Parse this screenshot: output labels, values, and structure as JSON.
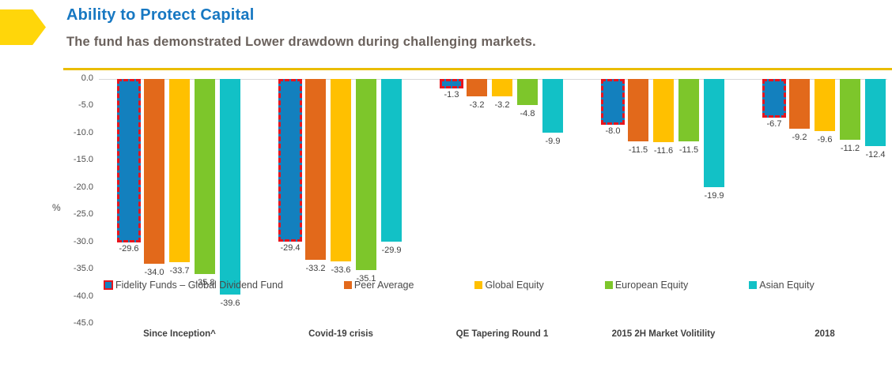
{
  "header": {
    "title": "Ability to Protect Capital",
    "subtitle": "The fund has demonstrated Lower drawdown during challenging markets."
  },
  "colors": {
    "title_blue": "#1778C2",
    "subtitle_gray": "#6A615C",
    "accent_yellow": "#EABD00",
    "arrow_yellow": "#FFD60A",
    "highlight_border_red": "#E8141C",
    "axis_line_gray": "#D9D9D9"
  },
  "chart_data": {
    "type": "bar",
    "title": "",
    "xlabel": "",
    "ylabel": "%",
    "ylim": [
      -45,
      0
    ],
    "ytick_labels": [
      "0.0",
      "-5.0",
      "-10.0",
      "-15.0",
      "-20.0",
      "-25.0",
      "-30.0",
      "-35.0",
      "-40.0",
      "-45.0"
    ],
    "ytick_values": [
      0,
      -5,
      -10,
      -15,
      -20,
      -25,
      -30,
      -35,
      -40,
      -45
    ],
    "grid": false,
    "legend_position": "bottom",
    "categories": [
      "Since Inception^",
      "Covid-19 crisis",
      "QE Tapering Round 1",
      "2015 2H Market Volitility",
      "2018"
    ],
    "series": [
      {
        "name": "Fidelity Funds – Global Dividend Fund",
        "color": "#1380BE",
        "highlighted": true,
        "values": [
          -29.6,
          -29.4,
          -1.3,
          -8.0,
          -6.7
        ]
      },
      {
        "name": "Peer Average",
        "color": "#E2691B",
        "highlighted": false,
        "values": [
          -34.0,
          -33.2,
          -3.2,
          -11.5,
          -9.2
        ]
      },
      {
        "name": "Global Equity",
        "color": "#FFC000",
        "highlighted": false,
        "values": [
          -33.7,
          -33.6,
          -3.2,
          -11.6,
          -9.6
        ]
      },
      {
        "name": "European Equity",
        "color": "#7DC62B",
        "highlighted": false,
        "values": [
          -35.8,
          -35.1,
          -4.8,
          -11.5,
          -11.2
        ]
      },
      {
        "name": "Asian Equity",
        "color": "#12C1C6",
        "highlighted": false,
        "values": [
          -39.6,
          -29.9,
          -9.9,
          -19.9,
          -12.4
        ]
      }
    ]
  }
}
